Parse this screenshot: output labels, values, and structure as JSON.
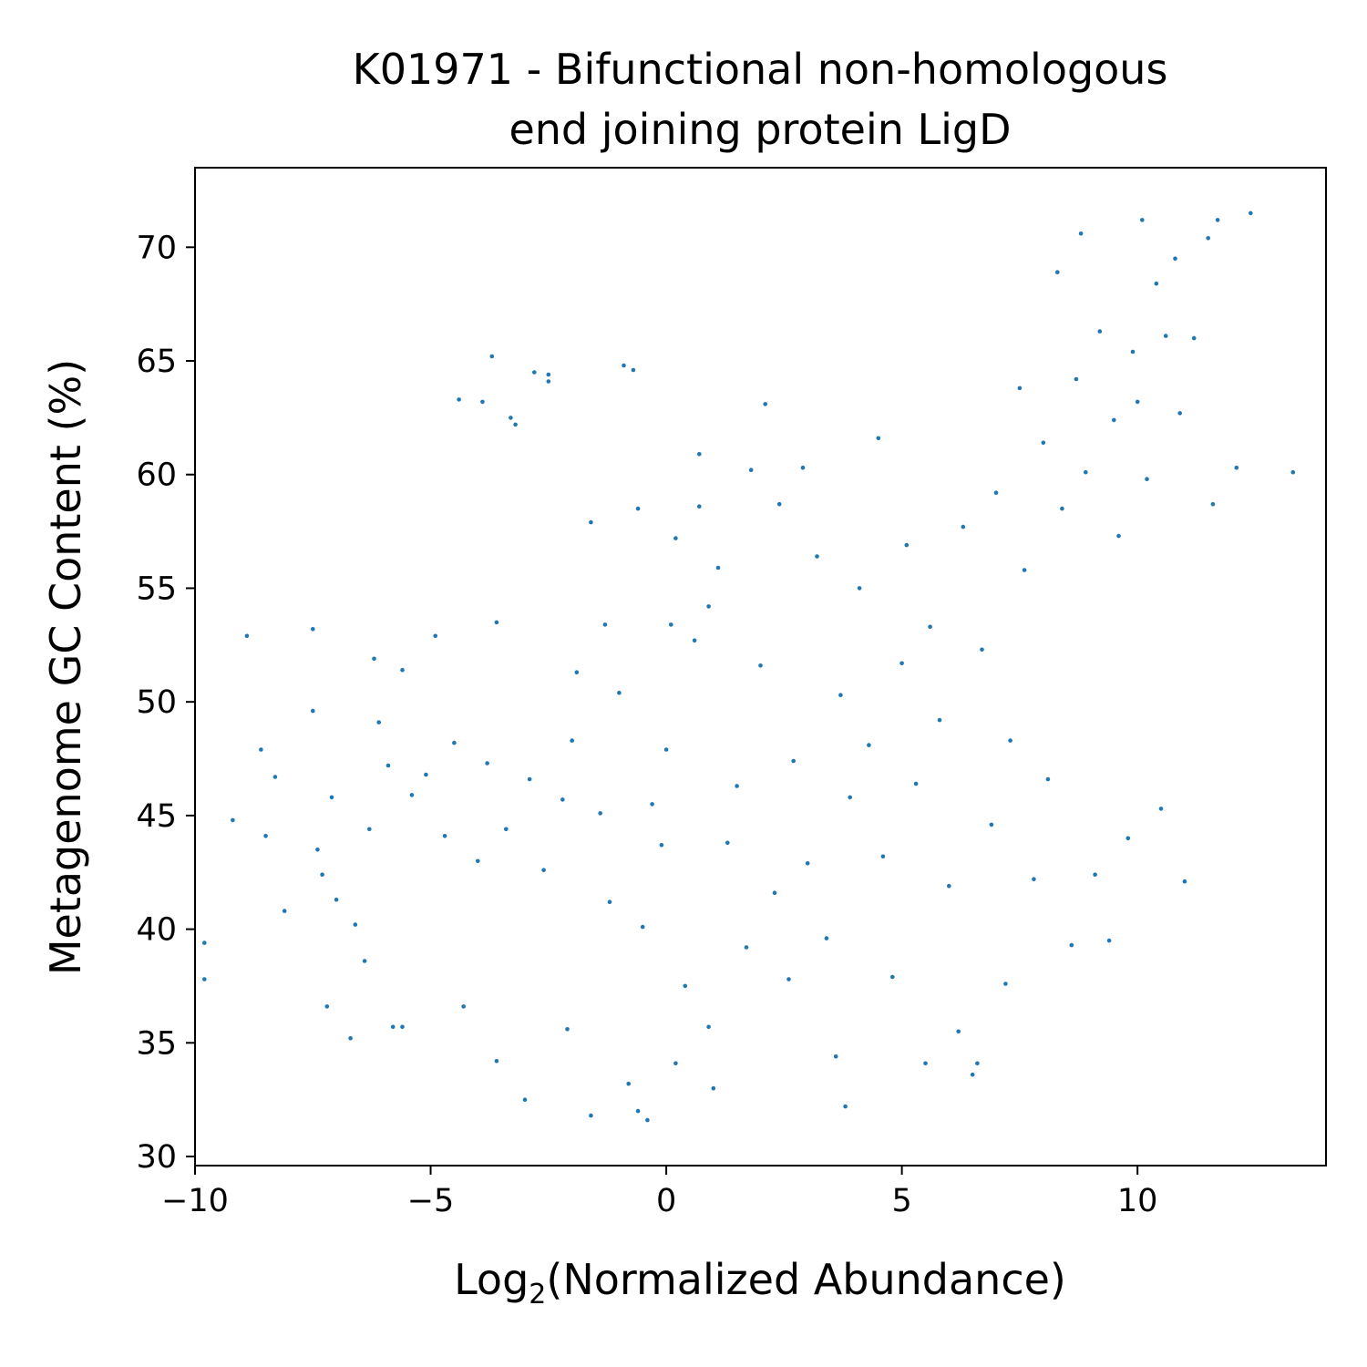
{
  "chart_data": {
    "type": "scatter",
    "title_lines": [
      "K01971 - Bifunctional non-homologous",
      "end joining protein LigD"
    ],
    "xlabel": {
      "prefix": "Log",
      "subscript": "2",
      "suffix": "(Normalized Abundance)"
    },
    "ylabel": "Metagenome GC Content (%)",
    "xlim": [
      -10,
      14
    ],
    "ylim": [
      29.6,
      73.5
    ],
    "xticks": [
      -10,
      -5,
      0,
      5,
      10
    ],
    "xtick_labels": [
      "−10",
      "−5",
      "0",
      "5",
      "10"
    ],
    "yticks": [
      30,
      35,
      40,
      45,
      50,
      55,
      60,
      65,
      70
    ],
    "ytick_labels": [
      "30",
      "35",
      "40",
      "45",
      "50",
      "55",
      "60",
      "65",
      "70"
    ],
    "grid": false,
    "legend": "none",
    "marker_color": "#1f77b4",
    "series": [
      {
        "points": [
          [
            -9.8,
            39.4
          ],
          [
            -9.8,
            37.8
          ],
          [
            -9.2,
            44.8
          ],
          [
            -8.9,
            52.9
          ],
          [
            -8.6,
            47.9
          ],
          [
            -8.5,
            44.1
          ],
          [
            -8.3,
            46.7
          ],
          [
            -8.1,
            40.8
          ],
          [
            -7.5,
            49.6
          ],
          [
            -7.5,
            53.2
          ],
          [
            -7.4,
            43.5
          ],
          [
            -7.3,
            42.4
          ],
          [
            -7.2,
            36.6
          ],
          [
            -7.1,
            45.8
          ],
          [
            -7.0,
            41.3
          ],
          [
            -6.7,
            35.2
          ],
          [
            -6.6,
            40.2
          ],
          [
            -6.4,
            38.6
          ],
          [
            -6.3,
            44.4
          ],
          [
            -6.2,
            51.9
          ],
          [
            -6.1,
            49.1
          ],
          [
            -5.9,
            47.2
          ],
          [
            -5.8,
            35.7
          ],
          [
            -5.6,
            35.7
          ],
          [
            -5.6,
            51.4
          ],
          [
            -5.4,
            45.9
          ],
          [
            -5.1,
            46.8
          ],
          [
            -4.9,
            52.9
          ],
          [
            -4.7,
            44.1
          ],
          [
            -4.5,
            48.2
          ],
          [
            -4.4,
            63.3
          ],
          [
            -4.3,
            36.6
          ],
          [
            -4.0,
            43.0
          ],
          [
            -3.9,
            63.2
          ],
          [
            -3.8,
            47.3
          ],
          [
            -3.7,
            65.2
          ],
          [
            -3.6,
            53.5
          ],
          [
            -3.6,
            34.2
          ],
          [
            -3.4,
            44.4
          ],
          [
            -3.3,
            62.5
          ],
          [
            -3.2,
            62.2
          ],
          [
            -3.0,
            32.5
          ],
          [
            -2.9,
            46.6
          ],
          [
            -2.8,
            64.5
          ],
          [
            -2.6,
            42.6
          ],
          [
            -2.5,
            64.1
          ],
          [
            -2.5,
            64.4
          ],
          [
            -2.2,
            45.7
          ],
          [
            -2.1,
            35.6
          ],
          [
            -2.0,
            48.3
          ],
          [
            -1.9,
            51.3
          ],
          [
            -1.6,
            57.9
          ],
          [
            -1.6,
            31.8
          ],
          [
            -1.4,
            45.1
          ],
          [
            -1.3,
            53.4
          ],
          [
            -1.2,
            41.2
          ],
          [
            -1.0,
            50.4
          ],
          [
            -0.9,
            64.8
          ],
          [
            -0.8,
            33.2
          ],
          [
            -0.7,
            64.6
          ],
          [
            -0.6,
            58.5
          ],
          [
            -0.6,
            32.0
          ],
          [
            -0.5,
            40.1
          ],
          [
            -0.4,
            31.6
          ],
          [
            -0.3,
            45.5
          ],
          [
            -0.1,
            43.7
          ],
          [
            0.0,
            47.9
          ],
          [
            0.1,
            53.4
          ],
          [
            0.2,
            57.2
          ],
          [
            0.2,
            34.1
          ],
          [
            0.4,
            37.5
          ],
          [
            0.6,
            52.7
          ],
          [
            0.7,
            60.9
          ],
          [
            0.7,
            58.6
          ],
          [
            0.9,
            35.7
          ],
          [
            0.9,
            54.2
          ],
          [
            1.0,
            33.0
          ],
          [
            1.1,
            55.9
          ],
          [
            1.3,
            43.8
          ],
          [
            1.5,
            46.3
          ],
          [
            1.7,
            39.2
          ],
          [
            1.8,
            60.2
          ],
          [
            2.0,
            51.6
          ],
          [
            2.1,
            63.1
          ],
          [
            2.3,
            41.6
          ],
          [
            2.4,
            58.7
          ],
          [
            2.6,
            37.8
          ],
          [
            2.7,
            47.4
          ],
          [
            2.9,
            60.3
          ],
          [
            3.0,
            42.9
          ],
          [
            3.2,
            56.4
          ],
          [
            3.4,
            39.6
          ],
          [
            3.6,
            34.4
          ],
          [
            3.7,
            50.3
          ],
          [
            3.8,
            32.2
          ],
          [
            3.9,
            45.8
          ],
          [
            4.1,
            55.0
          ],
          [
            4.3,
            48.1
          ],
          [
            4.5,
            61.6
          ],
          [
            4.6,
            43.2
          ],
          [
            4.8,
            37.9
          ],
          [
            5.0,
            51.7
          ],
          [
            5.1,
            56.9
          ],
          [
            5.3,
            46.4
          ],
          [
            5.5,
            34.1
          ],
          [
            5.6,
            53.3
          ],
          [
            5.8,
            49.2
          ],
          [
            6.0,
            41.9
          ],
          [
            6.2,
            35.5
          ],
          [
            6.3,
            57.7
          ],
          [
            6.5,
            33.6
          ],
          [
            6.6,
            34.1
          ],
          [
            6.7,
            52.3
          ],
          [
            6.9,
            44.6
          ],
          [
            7.0,
            59.2
          ],
          [
            7.2,
            37.6
          ],
          [
            7.3,
            48.3
          ],
          [
            7.5,
            63.8
          ],
          [
            7.6,
            55.8
          ],
          [
            7.8,
            42.2
          ],
          [
            8.0,
            61.4
          ],
          [
            8.1,
            46.6
          ],
          [
            8.3,
            68.9
          ],
          [
            8.4,
            58.5
          ],
          [
            8.6,
            39.3
          ],
          [
            8.7,
            64.2
          ],
          [
            8.8,
            70.6
          ],
          [
            8.9,
            60.1
          ],
          [
            9.1,
            42.4
          ],
          [
            9.2,
            66.3
          ],
          [
            9.4,
            39.5
          ],
          [
            9.5,
            62.4
          ],
          [
            9.6,
            57.3
          ],
          [
            9.8,
            44.0
          ],
          [
            9.9,
            65.4
          ],
          [
            10.0,
            63.2
          ],
          [
            10.1,
            71.2
          ],
          [
            10.2,
            59.8
          ],
          [
            10.4,
            68.4
          ],
          [
            10.5,
            45.3
          ],
          [
            10.6,
            66.1
          ],
          [
            10.8,
            69.5
          ],
          [
            10.9,
            62.7
          ],
          [
            11.0,
            42.1
          ],
          [
            11.2,
            66.0
          ],
          [
            11.5,
            70.4
          ],
          [
            11.6,
            58.7
          ],
          [
            11.7,
            71.2
          ],
          [
            12.1,
            60.3
          ],
          [
            12.4,
            71.5
          ],
          [
            13.3,
            60.1
          ]
        ]
      }
    ]
  }
}
